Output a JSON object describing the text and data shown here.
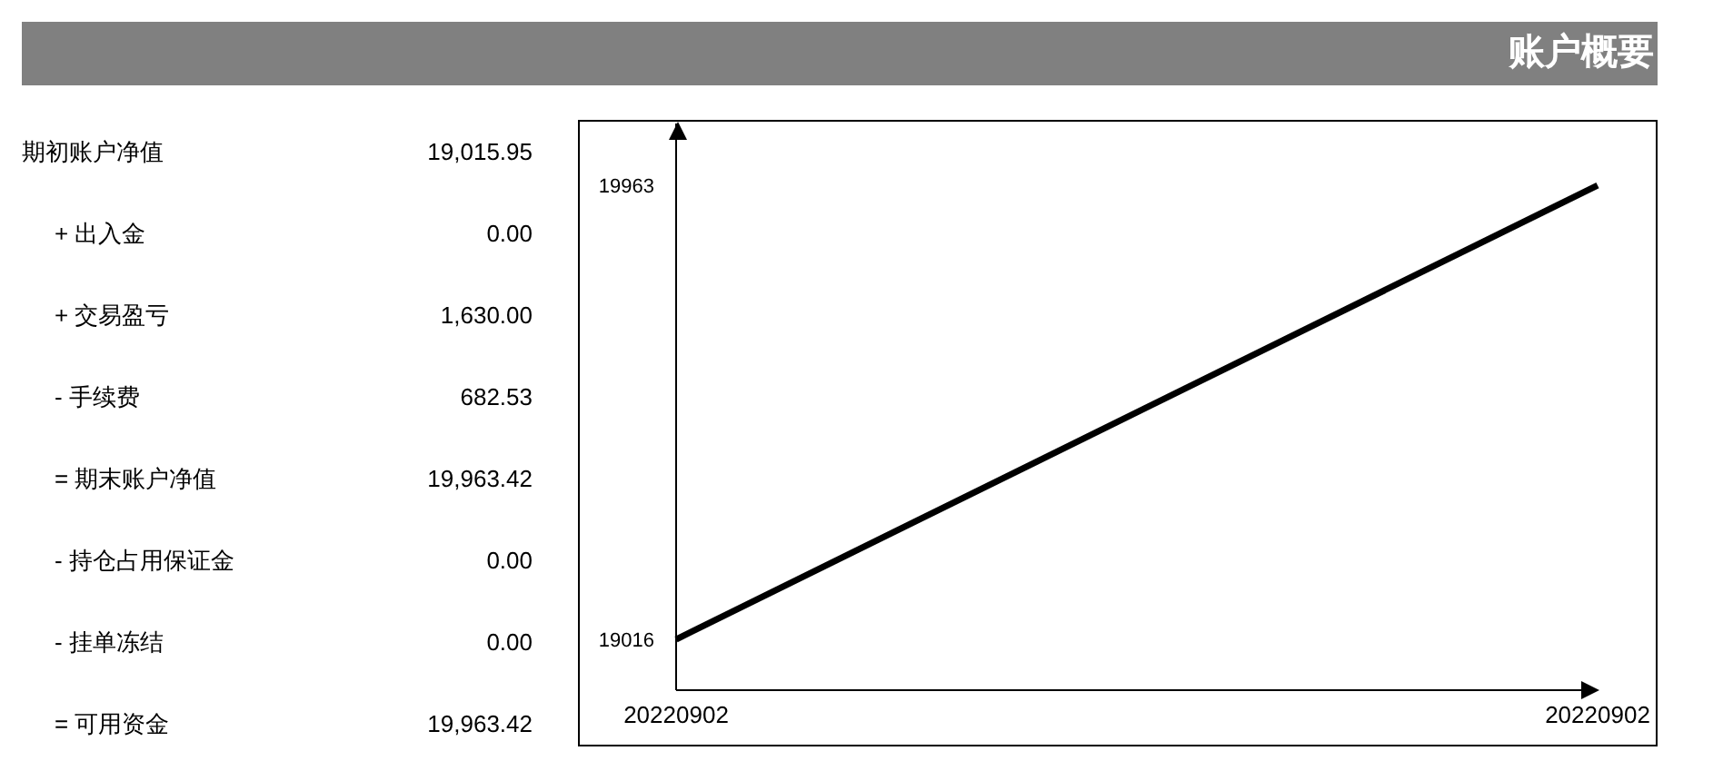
{
  "chart_data": [
    {
      "type": "other",
      "title": "账户概要",
      "annotations": [
        "期初账户净值",
        "19,015.95",
        "+ 出入金",
        "0.00",
        "+ 交易盈亏",
        "1,630.00",
        "- 手续费",
        "682.53",
        "= 期末账户净值",
        "19,963.42",
        "- 持仓占用保证金",
        "0.00",
        "- 挂单冻结",
        "0.00",
        "= 可用资金",
        "19,963.42"
      ]
    },
    {
      "type": "line",
      "categories": [
        "20220902",
        "20220902"
      ],
      "series": [
        {
          "color": "#000000",
          "values": [
            19016,
            19963
          ]
        }
      ],
      "ylim": [
        18910,
        20092
      ],
      "yticks": [
        19016,
        19963
      ],
      "marker": "none",
      "line_style": "solid"
    }
  ]
}
